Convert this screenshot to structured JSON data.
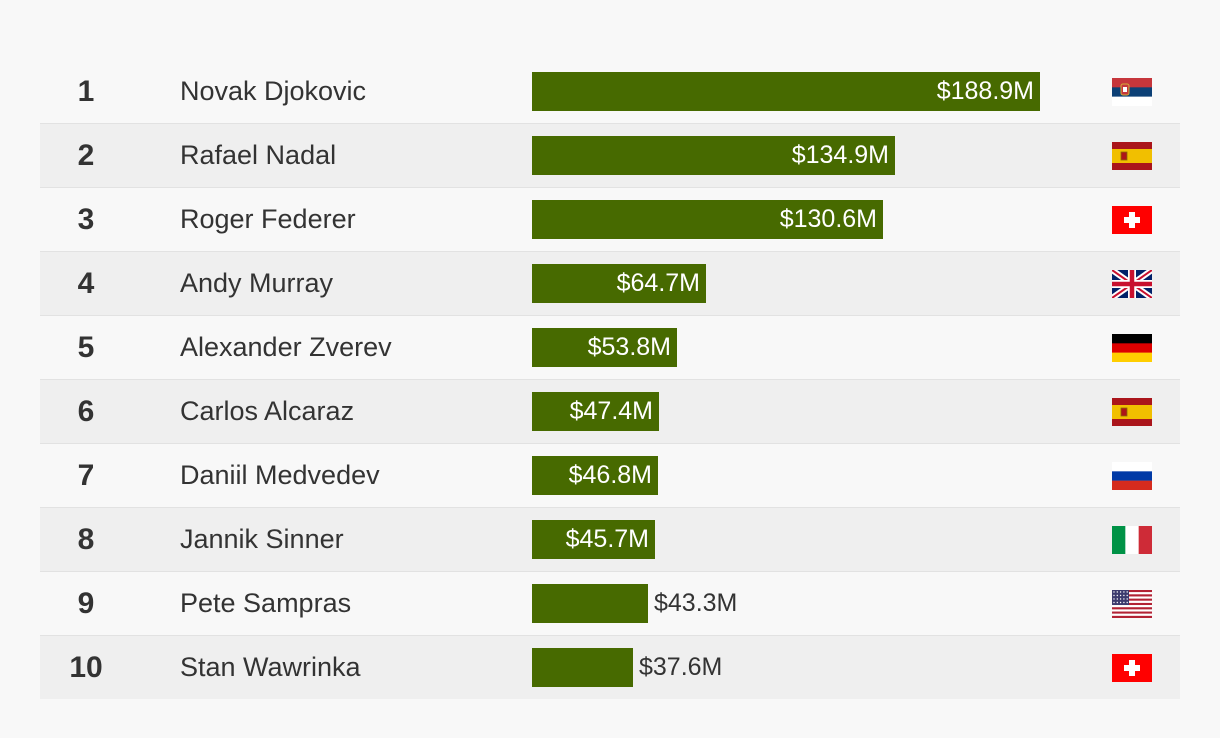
{
  "chart_data": {
    "type": "bar",
    "orientation": "horizontal",
    "title": "",
    "xlabel": "",
    "ylabel": "",
    "xlim": [
      0,
      188.9
    ],
    "value_prefix": "$",
    "value_suffix": "M",
    "categories": [
      "Novak Djokovic",
      "Rafael Nadal",
      "Roger Federer",
      "Andy Murray",
      "Alexander Zverev",
      "Carlos Alcaraz",
      "Daniil Medvedev",
      "Jannik Sinner",
      "Pete Sampras",
      "Stan Wawrinka"
    ],
    "ranks": [
      "1",
      "2",
      "3",
      "4",
      "5",
      "6",
      "7",
      "8",
      "9",
      "10"
    ],
    "values": [
      188.9,
      134.9,
      130.6,
      64.7,
      53.8,
      47.4,
      46.8,
      45.7,
      43.3,
      37.6
    ],
    "labels": [
      "$188.9M",
      "$134.9M",
      "$130.6M",
      "$64.7M",
      "$53.8M",
      "$47.4M",
      "$46.8M",
      "$45.7M",
      "$43.3M",
      "$37.6M"
    ],
    "flags": [
      "serbia-flag-icon",
      "spain-flag-icon",
      "switzerland-flag-icon",
      "uk-flag-icon",
      "germany-flag-icon",
      "spain-flag-icon",
      "russia-flag-icon",
      "italy-flag-icon",
      "usa-flag-icon",
      "switzerland-flag-icon"
    ],
    "bar_color": "#476a00"
  }
}
